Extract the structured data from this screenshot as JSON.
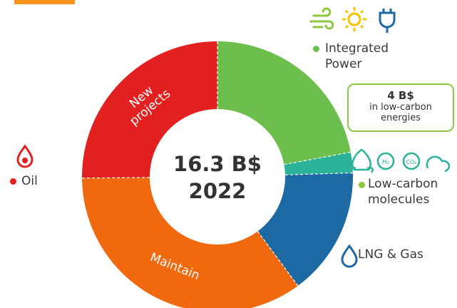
{
  "chart_data": {
    "type": "donut",
    "title": "16.3 B$",
    "subtitle": "2022",
    "categories": [
      "Integrated Power",
      "Low-carbon molecules",
      "LNG & Gas",
      "Maintain",
      "New projects"
    ],
    "values": [
      3.6,
      0.4,
      2.5,
      5.7,
      4.1
    ],
    "colors": [
      "#6cbf4c",
      "#2bb39a",
      "#1d69a3",
      "#f0690f",
      "#e2201f"
    ],
    "group_label": "Oil",
    "annotation": {
      "value": "4 B$",
      "text": "in low-carbon energies"
    }
  }
}
